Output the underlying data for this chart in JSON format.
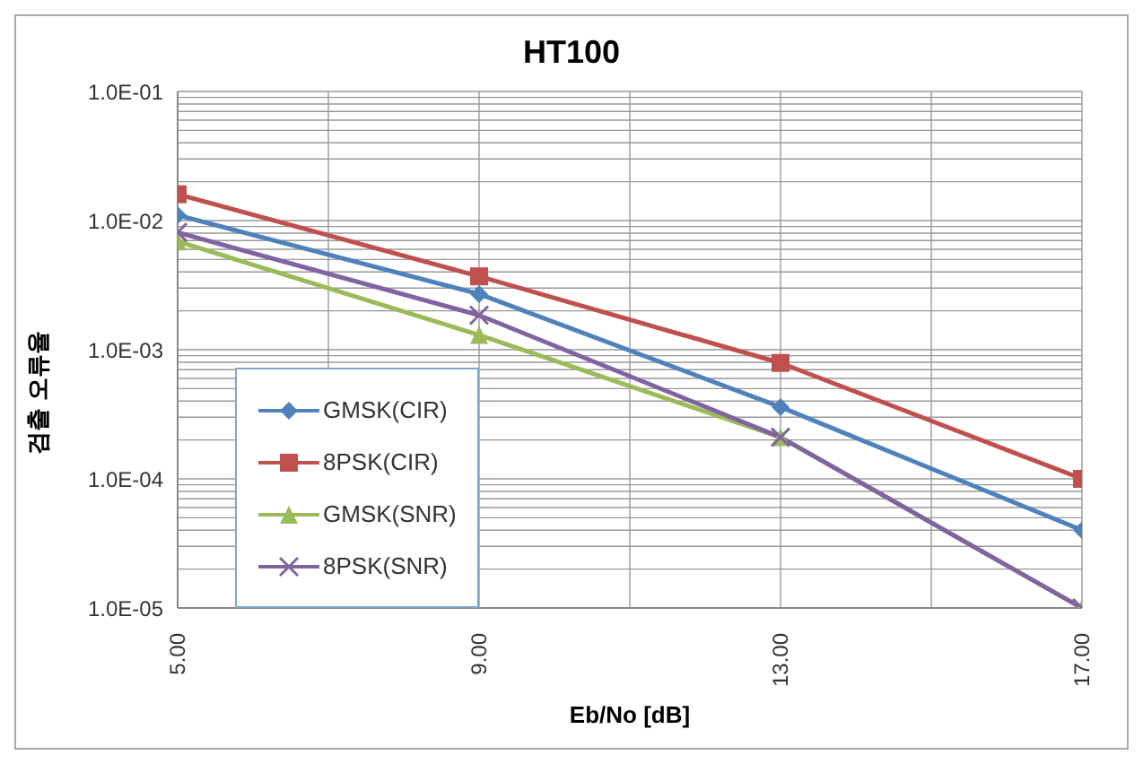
{
  "chart_data": {
    "type": "line",
    "title": "HT100",
    "xlabel": "Eb/No [dB]",
    "ylabel": "검출 오류율",
    "log": "y",
    "grid": true,
    "legend": "bottom left",
    "line_style": "solid",
    "xlim": [
      5,
      17
    ],
    "xticks": [
      {
        "value": 5,
        "label": "5.00"
      },
      {
        "value": 7,
        "label": null
      },
      {
        "value": 9,
        "label": "9.00"
      },
      {
        "value": 11,
        "label": null
      },
      {
        "value": 13,
        "label": "13.00"
      },
      {
        "value": 15,
        "label": null
      },
      {
        "value": 17,
        "label": "17.00"
      }
    ],
    "ylim": [
      1e-05,
      0.1
    ],
    "yticks": [
      {
        "value": 1e-05,
        "label": "1.0E-05"
      },
      {
        "value": 2e-05,
        "label": null
      },
      {
        "value": 3e-05,
        "label": null
      },
      {
        "value": 4e-05,
        "label": null
      },
      {
        "value": 5e-05,
        "label": null
      },
      {
        "value": 6e-05,
        "label": null
      },
      {
        "value": 7e-05,
        "label": null
      },
      {
        "value": 8e-05,
        "label": null
      },
      {
        "value": 9e-05,
        "label": null
      },
      {
        "value": 0.0001,
        "label": "1.0E-04"
      },
      {
        "value": 0.0002,
        "label": null
      },
      {
        "value": 0.0003,
        "label": null
      },
      {
        "value": 0.0004,
        "label": null
      },
      {
        "value": 0.0005,
        "label": null
      },
      {
        "value": 0.0006,
        "label": null
      },
      {
        "value": 0.0007,
        "label": null
      },
      {
        "value": 0.0008,
        "label": null
      },
      {
        "value": 0.0009,
        "label": null
      },
      {
        "value": 0.001,
        "label": "1.0E-03"
      },
      {
        "value": 0.002,
        "label": null
      },
      {
        "value": 0.003,
        "label": null
      },
      {
        "value": 0.004,
        "label": null
      },
      {
        "value": 0.005,
        "label": null
      },
      {
        "value": 0.006,
        "label": null
      },
      {
        "value": 0.007,
        "label": null
      },
      {
        "value": 0.008,
        "label": null
      },
      {
        "value": 0.009,
        "label": null
      },
      {
        "value": 0.01,
        "label": "1.0E-02"
      },
      {
        "value": 0.02,
        "label": null
      },
      {
        "value": 0.03,
        "label": null
      },
      {
        "value": 0.04,
        "label": null
      },
      {
        "value": 0.05,
        "label": null
      },
      {
        "value": 0.06,
        "label": null
      },
      {
        "value": 0.07,
        "label": null
      },
      {
        "value": 0.08,
        "label": null
      },
      {
        "value": 0.09,
        "label": null
      },
      {
        "value": 0.1,
        "label": "1.0E-01"
      }
    ],
    "x": [
      5,
      9,
      13,
      17
    ],
    "series": [
      {
        "name": "GMSK(CIR)",
        "color": "#4f81bd",
        "marker": "diamond",
        "values": [
          0.011,
          0.0027,
          0.00036,
          4e-05
        ]
      },
      {
        "name": "8PSK(CIR)",
        "color": "#c0504d",
        "marker": "square",
        "values": [
          0.016,
          0.0037,
          0.00079,
          0.0001
        ]
      },
      {
        "name": "GMSK(SNR)",
        "color": "#9bbb59",
        "marker": "triangle",
        "values": [
          0.0069,
          0.0013,
          0.00021,
          1e-05
        ]
      },
      {
        "name": "8PSK(SNR)",
        "color": "#8064a2",
        "marker": "cross",
        "values": [
          0.0081,
          0.00185,
          0.00021,
          1e-05
        ]
      }
    ]
  }
}
